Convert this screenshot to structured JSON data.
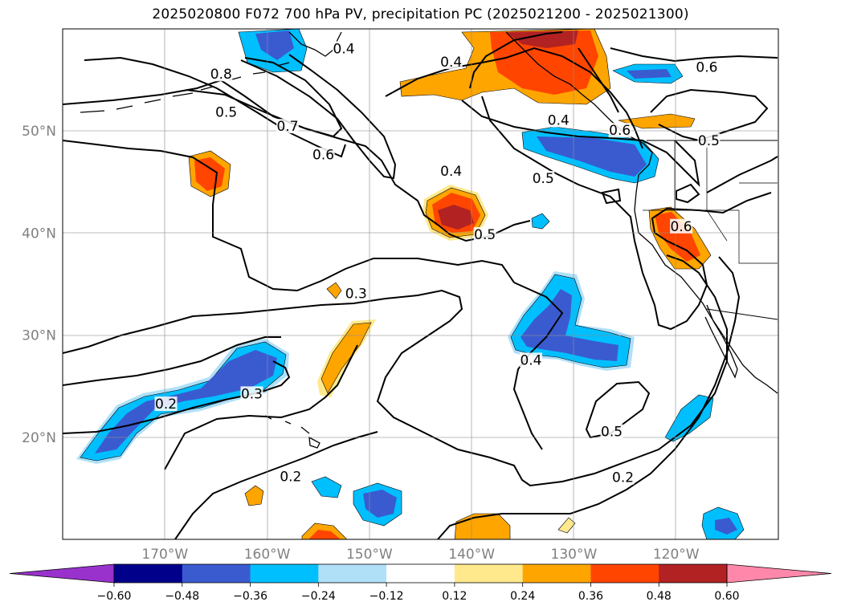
{
  "title": "2025020800 F072 700 hPa PV, precipitation PC (2025021200 - 2025021300)",
  "map": {
    "lon_range": [
      -180,
      -110
    ],
    "lat_range": [
      10,
      60
    ],
    "lat_ticks": [
      {
        "value": 20,
        "label": "20°N"
      },
      {
        "value": 30,
        "label": "30°N"
      },
      {
        "value": 40,
        "label": "40°N"
      },
      {
        "value": 50,
        "label": "50°N"
      }
    ],
    "lon_ticks": [
      {
        "value": -170,
        "label": "170°W"
      },
      {
        "value": -160,
        "label": "160°W"
      },
      {
        "value": -150,
        "label": "150°W"
      },
      {
        "value": -140,
        "label": "140°W"
      },
      {
        "value": -130,
        "label": "130°W"
      },
      {
        "value": -120,
        "label": "120°W"
      }
    ],
    "grid": true
  },
  "contour_labels": [
    {
      "text": "0.4",
      "lon": -152.5,
      "lat": 58.0
    },
    {
      "text": "0.8",
      "lon": -164.5,
      "lat": 55.5
    },
    {
      "text": "0.5",
      "lon": -164.0,
      "lat": 51.8
    },
    {
      "text": "0.7",
      "lon": -158.0,
      "lat": 50.4
    },
    {
      "text": "0.6",
      "lon": -154.5,
      "lat": 47.6
    },
    {
      "text": "0.4",
      "lon": -142.0,
      "lat": 56.7
    },
    {
      "text": "0.4",
      "lon": -142.0,
      "lat": 46.0
    },
    {
      "text": "0.5",
      "lon": -138.7,
      "lat": 39.8
    },
    {
      "text": "0.5",
      "lon": -133.0,
      "lat": 45.3
    },
    {
      "text": "0.4",
      "lon": -131.5,
      "lat": 51.0
    },
    {
      "text": "0.6",
      "lon": -125.5,
      "lat": 50.0
    },
    {
      "text": "0.6",
      "lon": -119.5,
      "lat": 40.6
    },
    {
      "text": "0.6",
      "lon": -117.0,
      "lat": 56.2
    },
    {
      "text": "0.5",
      "lon": -116.8,
      "lat": 49.0
    },
    {
      "text": "0.3",
      "lon": -151.3,
      "lat": 34.0
    },
    {
      "text": "0.3",
      "lon": -161.5,
      "lat": 24.2
    },
    {
      "text": "0.2",
      "lon": -169.9,
      "lat": 23.2
    },
    {
      "text": "0.2",
      "lon": -157.7,
      "lat": 16.1
    },
    {
      "text": "0.4",
      "lon": -134.2,
      "lat": 27.5
    },
    {
      "text": "0.5",
      "lon": -126.3,
      "lat": 20.5
    },
    {
      "text": "0.2",
      "lon": -125.2,
      "lat": 16.0
    }
  ],
  "colorbar": {
    "levels": [
      "-0.60",
      "-0.48",
      "-0.36",
      "-0.24",
      "-0.12",
      "0.12",
      "0.24",
      "0.36",
      "0.48",
      "0.60"
    ],
    "colors": [
      "#9932cc",
      "#00008b",
      "#3a5bd0",
      "#00bfff",
      "#b0e0f8",
      "#ffffff",
      "#ffe98c",
      "#ffa500",
      "#ff4500",
      "#b22222",
      "#ff88aa"
    ]
  }
}
